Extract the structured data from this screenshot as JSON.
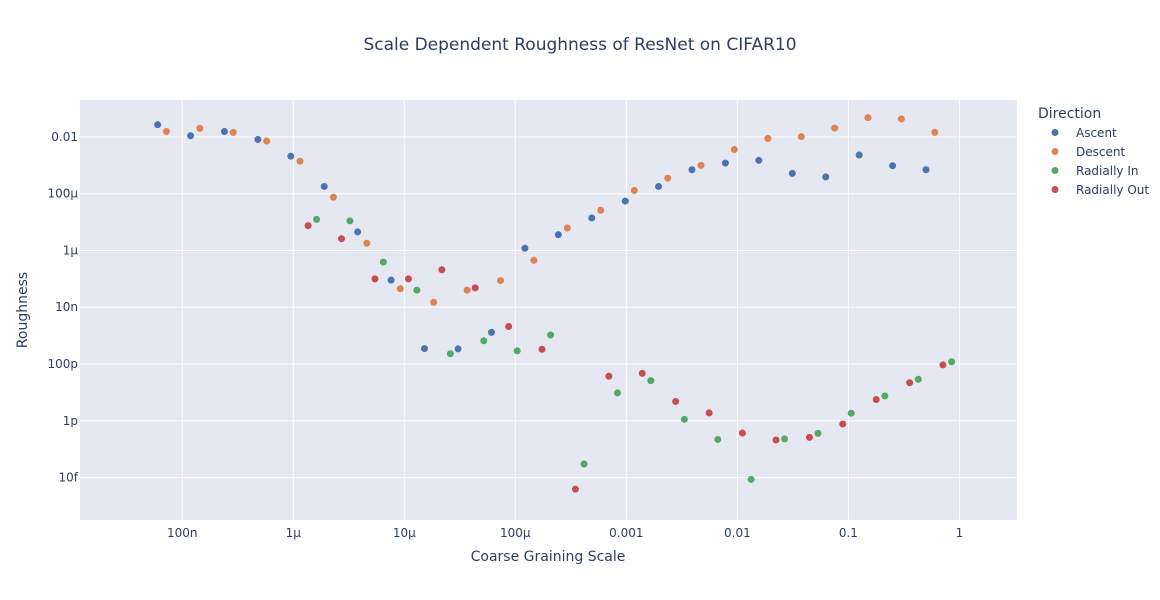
{
  "chart_data": {
    "type": "scatter",
    "title": "Scale Dependent Roughness of ResNet on CIFAR10",
    "xlabel": "Coarse Graining Scale",
    "ylabel": "Roughness",
    "x_scale": "log",
    "y_scale": "log",
    "xlim": [
      1.2e-08,
      3.3
    ],
    "ylim": [
      3.2e-16,
      0.2
    ],
    "x_ticks": [
      {
        "value": 1e-07,
        "label": "100n"
      },
      {
        "value": 1e-06,
        "label": "1μ"
      },
      {
        "value": 1e-05,
        "label": "10μ"
      },
      {
        "value": 0.0001,
        "label": "100μ"
      },
      {
        "value": 0.001,
        "label": "0.001"
      },
      {
        "value": 0.01,
        "label": "0.01"
      },
      {
        "value": 0.1,
        "label": "0.1"
      },
      {
        "value": 1,
        "label": "1"
      }
    ],
    "y_ticks": [
      {
        "value": 1e-14,
        "label": "10f"
      },
      {
        "value": 1e-12,
        "label": "1p"
      },
      {
        "value": 1e-10,
        "label": "100p"
      },
      {
        "value": 1e-08,
        "label": "10n"
      },
      {
        "value": 1e-06,
        "label": "1μ"
      },
      {
        "value": 0.0001,
        "label": "100μ"
      },
      {
        "value": 0.01,
        "label": "0.01"
      }
    ],
    "grid": true,
    "legend_title": "Direction",
    "legend_position": "right",
    "series": [
      {
        "name": "Ascent",
        "color": "#4c72b0",
        "points": [
          [
            6e-08,
            0.027
          ],
          [
            1.19e-07,
            0.011
          ],
          [
            2.4e-07,
            0.0155
          ],
          [
            4.8e-07,
            0.0081
          ],
          [
            9.5e-07,
            0.0021
          ],
          [
            1.9e-06,
            0.00018
          ],
          [
            3.8e-06,
            4.5e-06
          ],
          [
            7.6e-06,
            9e-08
          ],
          [
            1.52e-05,
            3.5e-10
          ],
          [
            3.05e-05,
            3.4e-10
          ],
          [
            6.1e-05,
            1.3e-09
          ],
          [
            0.000122,
            1.2e-06
          ],
          [
            0.000244,
            3.6e-06
          ],
          [
            0.000488,
            1.4e-05
          ],
          [
            0.000977,
            5.5e-05
          ],
          [
            0.00195,
            0.00018
          ],
          [
            0.0039,
            0.0007
          ],
          [
            0.0078,
            0.0012
          ],
          [
            0.0156,
            0.0015
          ],
          [
            0.03125,
            0.00052
          ],
          [
            0.0625,
            0.00039
          ],
          [
            0.125,
            0.0023
          ],
          [
            0.25,
            0.00097
          ],
          [
            0.5,
            0.0007
          ]
        ]
      },
      {
        "name": "Descent",
        "color": "#dd8452",
        "points": [
          [
            7.2e-08,
            0.0155
          ],
          [
            1.44e-07,
            0.02
          ],
          [
            2.88e-07,
            0.0145
          ],
          [
            5.76e-07,
            0.0072
          ],
          [
            1.15e-06,
            0.0014
          ],
          [
            2.3e-06,
            7.5e-05
          ],
          [
            4.6e-06,
            1.8e-06
          ],
          [
            9.2e-06,
            4.5e-08
          ],
          [
            1.84e-05,
            1.5e-08
          ],
          [
            3.68e-05,
            4e-08
          ],
          [
            7.36e-05,
            8.7e-08
          ],
          [
            0.000147,
            4.5e-07
          ],
          [
            0.000294,
            6.2e-06
          ],
          [
            0.000588,
            2.6e-05
          ],
          [
            0.00118,
            0.00013
          ],
          [
            0.00236,
            0.00035
          ],
          [
            0.0047,
            0.001
          ],
          [
            0.0094,
            0.0036
          ],
          [
            0.0188,
            0.0088
          ],
          [
            0.0376,
            0.0102
          ],
          [
            0.0752,
            0.0205
          ],
          [
            0.15,
            0.048
          ],
          [
            0.3,
            0.043
          ],
          [
            0.6,
            0.0145
          ]
        ]
      },
      {
        "name": "Radially In",
        "color": "#55a868",
        "points": [
          [
            1.62e-06,
            1.25e-05
          ],
          [
            3.24e-06,
            1.1e-05
          ],
          [
            6.48e-06,
            3.9e-07
          ],
          [
            1.3e-05,
            4e-08
          ],
          [
            2.6e-05,
            2.3e-10
          ],
          [
            5.2e-05,
            6.6e-10
          ],
          [
            0.000104,
            2.9e-10
          ],
          [
            0.000208,
            1.05e-09
          ],
          [
            0.000416,
            3e-14
          ],
          [
            0.000832,
            9.6e-12
          ],
          [
            0.00166,
            2.6e-11
          ],
          [
            0.00333,
            1.12e-12
          ],
          [
            0.00666,
            2.2e-13
          ],
          [
            0.0133,
            8.6e-15
          ],
          [
            0.0266,
            2.3e-13
          ],
          [
            0.0532,
            3.6e-13
          ],
          [
            0.106,
            1.85e-12
          ],
          [
            0.213,
            7.5e-12
          ],
          [
            0.426,
            2.9e-11
          ],
          [
            0.85,
            1.2e-10
          ]
        ]
      },
      {
        "name": "Radially Out",
        "color": "#c44e52",
        "points": [
          [
            1.36e-06,
            7.5e-06
          ],
          [
            2.72e-06,
            2.6e-06
          ],
          [
            5.44e-06,
            1e-07
          ],
          [
            1.09e-05,
            1e-07
          ],
          [
            2.18e-05,
            2.1e-07
          ],
          [
            4.35e-05,
            4.8e-08
          ],
          [
            8.7e-05,
            2.1e-09
          ],
          [
            0.000174,
            3.3e-10
          ],
          [
            0.000348,
            3.9e-15
          ],
          [
            0.000696,
            3.7e-11
          ],
          [
            0.00139,
            4.7e-11
          ],
          [
            0.00278,
            4.8e-12
          ],
          [
            0.00557,
            1.9e-12
          ],
          [
            0.0111,
            3.7e-13
          ],
          [
            0.0223,
            2.1e-13
          ],
          [
            0.0446,
            2.6e-13
          ],
          [
            0.089,
            7.7e-13
          ],
          [
            0.178,
            5.6e-12
          ],
          [
            0.356,
            2.2e-11
          ],
          [
            0.71,
            9.3e-11
          ]
        ]
      }
    ]
  }
}
